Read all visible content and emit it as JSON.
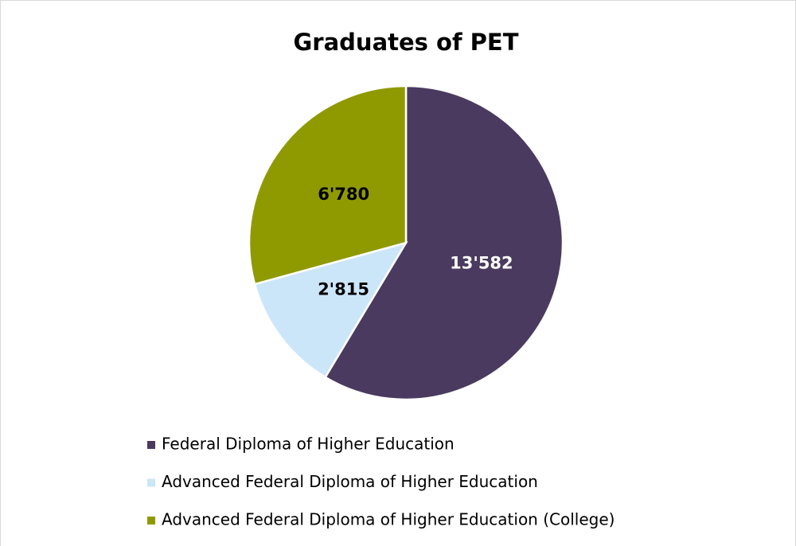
{
  "chart_data": {
    "type": "pie",
    "title": "Graduates of PET",
    "categories": [
      "Federal Diploma of Higher Education",
      "Advanced Federal Diploma of Higher Education",
      "Advanced Federal Diploma of Higher Education (College)"
    ],
    "values": [
      13582,
      2815,
      6780
    ],
    "value_labels": [
      "13'582",
      "2'815",
      "6'780"
    ],
    "colors": [
      "#4b3a5f",
      "#cce6f9",
      "#8f9a00"
    ],
    "legend": "bottom"
  }
}
